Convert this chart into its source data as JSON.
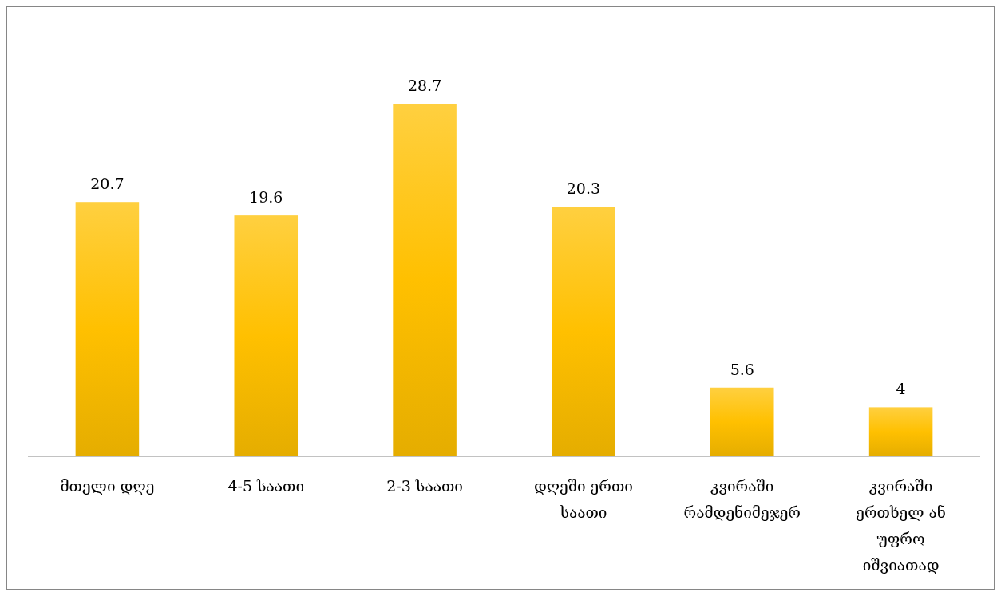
{
  "chart_data": {
    "type": "bar",
    "categories": [
      "მთელი დღე",
      "4-5 საათი",
      "2-3 საათი",
      "დღეში ერთი საათი",
      "კვირაში რამდენიმეჯერ",
      "კვირაში ერთხელ ან უფრო იშვიათად"
    ],
    "values": [
      20.7,
      19.6,
      28.7,
      20.3,
      5.6,
      4
    ],
    "color": "#ffc000",
    "data_labels": true
  }
}
